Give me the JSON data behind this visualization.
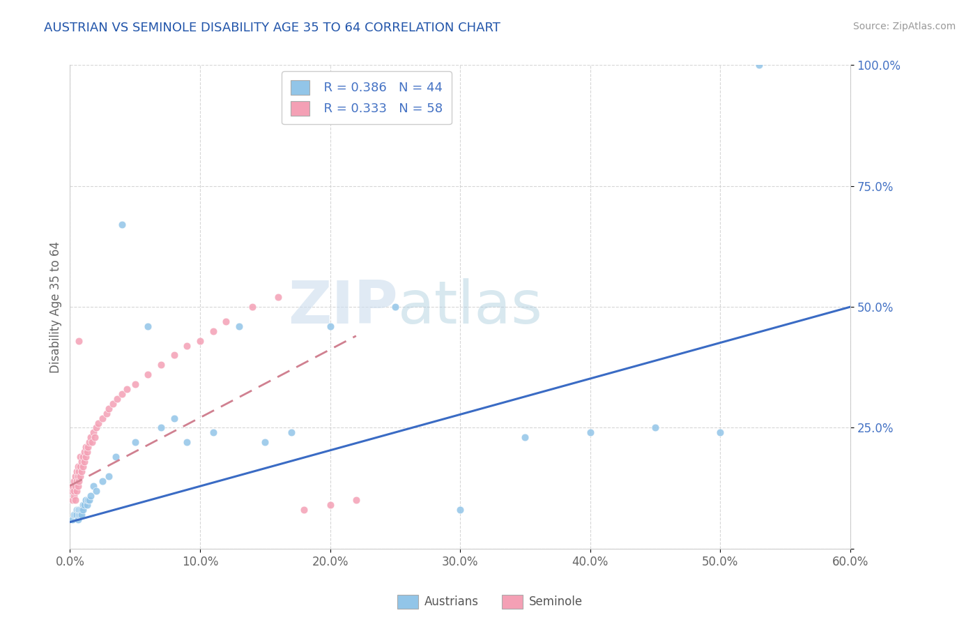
{
  "title": "AUSTRIAN VS SEMINOLE DISABILITY AGE 35 TO 64 CORRELATION CHART",
  "source_text": "Source: ZipAtlas.com",
  "xlabel_ticks": [
    "0.0%",
    "10.0%",
    "20.0%",
    "30.0%",
    "40.0%",
    "50.0%",
    "60.0%"
  ],
  "ylabel_ticks": [
    "",
    "25.0%",
    "50.0%",
    "75.0%",
    "100.0%"
  ],
  "xlim": [
    0.0,
    0.6
  ],
  "ylim": [
    0.0,
    1.0
  ],
  "legend_r_austrians": "R = 0.386",
  "legend_n_austrians": "N = 44",
  "legend_r_seminole": "R = 0.333",
  "legend_n_seminole": "N = 58",
  "color_austrians": "#92C5E8",
  "color_seminole": "#F4A0B5",
  "color_trend_austrians": "#3A6BC4",
  "color_trend_seminole": "#D08090",
  "watermark_zip": "ZIP",
  "watermark_atlas": "atlas",
  "ylabel": "Disability Age 35 to 64",
  "austrians_x": [
    0.002,
    0.003,
    0.004,
    0.005,
    0.005,
    0.006,
    0.006,
    0.007,
    0.007,
    0.008,
    0.008,
    0.009,
    0.009,
    0.01,
    0.01,
    0.011,
    0.012,
    0.013,
    0.014,
    0.015,
    0.016,
    0.018,
    0.02,
    0.025,
    0.03,
    0.035,
    0.04,
    0.05,
    0.06,
    0.07,
    0.08,
    0.09,
    0.11,
    0.13,
    0.15,
    0.17,
    0.2,
    0.25,
    0.3,
    0.35,
    0.4,
    0.45,
    0.5,
    0.53
  ],
  "austrians_y": [
    0.06,
    0.07,
    0.07,
    0.08,
    0.07,
    0.06,
    0.08,
    0.07,
    0.08,
    0.07,
    0.08,
    0.08,
    0.07,
    0.09,
    0.08,
    0.09,
    0.1,
    0.09,
    0.1,
    0.1,
    0.11,
    0.13,
    0.12,
    0.14,
    0.15,
    0.19,
    0.67,
    0.22,
    0.46,
    0.25,
    0.27,
    0.22,
    0.24,
    0.46,
    0.22,
    0.24,
    0.46,
    0.5,
    0.08,
    0.23,
    0.24,
    0.25,
    0.24,
    1.0
  ],
  "seminole_x": [
    0.001,
    0.002,
    0.002,
    0.003,
    0.003,
    0.003,
    0.004,
    0.004,
    0.004,
    0.005,
    0.005,
    0.005,
    0.006,
    0.006,
    0.006,
    0.007,
    0.007,
    0.007,
    0.008,
    0.008,
    0.008,
    0.009,
    0.009,
    0.01,
    0.01,
    0.011,
    0.011,
    0.012,
    0.012,
    0.013,
    0.014,
    0.015,
    0.016,
    0.017,
    0.018,
    0.019,
    0.02,
    0.022,
    0.025,
    0.028,
    0.03,
    0.033,
    0.036,
    0.04,
    0.044,
    0.05,
    0.06,
    0.07,
    0.08,
    0.09,
    0.1,
    0.11,
    0.12,
    0.14,
    0.16,
    0.18,
    0.2,
    0.22
  ],
  "seminole_y": [
    0.12,
    0.1,
    0.13,
    0.11,
    0.12,
    0.14,
    0.1,
    0.13,
    0.15,
    0.12,
    0.14,
    0.16,
    0.13,
    0.15,
    0.17,
    0.14,
    0.16,
    0.43,
    0.15,
    0.17,
    0.19,
    0.16,
    0.18,
    0.17,
    0.19,
    0.18,
    0.2,
    0.19,
    0.21,
    0.2,
    0.21,
    0.22,
    0.23,
    0.22,
    0.24,
    0.23,
    0.25,
    0.26,
    0.27,
    0.28,
    0.29,
    0.3,
    0.31,
    0.32,
    0.33,
    0.34,
    0.36,
    0.38,
    0.4,
    0.42,
    0.43,
    0.45,
    0.47,
    0.5,
    0.52,
    0.08,
    0.09,
    0.1
  ],
  "trend_austrians_x0": 0.0,
  "trend_austrians_y0": 0.055,
  "trend_austrians_x1": 0.6,
  "trend_austrians_y1": 0.5,
  "trend_seminole_x0": 0.0,
  "trend_seminole_y0": 0.13,
  "trend_seminole_x1": 0.22,
  "trend_seminole_y1": 0.44
}
